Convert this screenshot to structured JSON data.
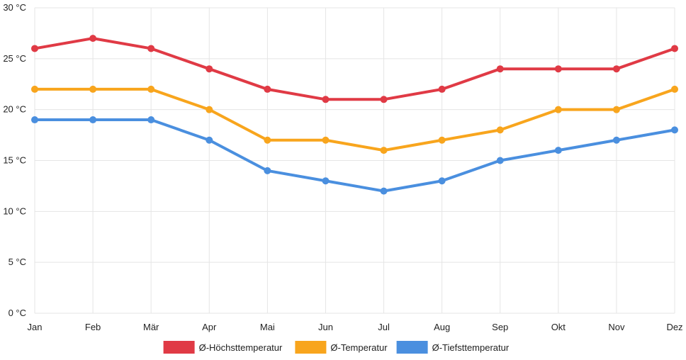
{
  "chart_data": {
    "type": "line",
    "categories": [
      "Jan",
      "Feb",
      "Mär",
      "Apr",
      "Mai",
      "Jun",
      "Jul",
      "Aug",
      "Sep",
      "Okt",
      "Nov",
      "Dez"
    ],
    "ylim": [
      0,
      30
    ],
    "y_ticks": [
      "0 °C",
      "5 °C",
      "10 °C",
      "15 °C",
      "20 °C",
      "25 °C",
      "30 °C"
    ],
    "grid": true,
    "legend_position": "bottom",
    "series": [
      {
        "name": "Ø-Höchsttemperatur",
        "color": "#e03a45",
        "values": [
          26,
          27,
          26,
          24,
          22,
          21,
          21,
          22,
          24,
          24,
          24,
          26
        ]
      },
      {
        "name": "Ø-Temperatur",
        "color": "#f8a51d",
        "values": [
          22,
          22,
          22,
          20,
          17,
          17,
          16,
          17,
          18,
          20,
          20,
          22
        ]
      },
      {
        "name": "Ø-Tiefsttemperatur",
        "color": "#4a8fdf",
        "values": [
          19,
          19,
          19,
          17,
          14,
          13,
          12,
          13,
          15,
          16,
          17,
          18
        ]
      }
    ]
  }
}
